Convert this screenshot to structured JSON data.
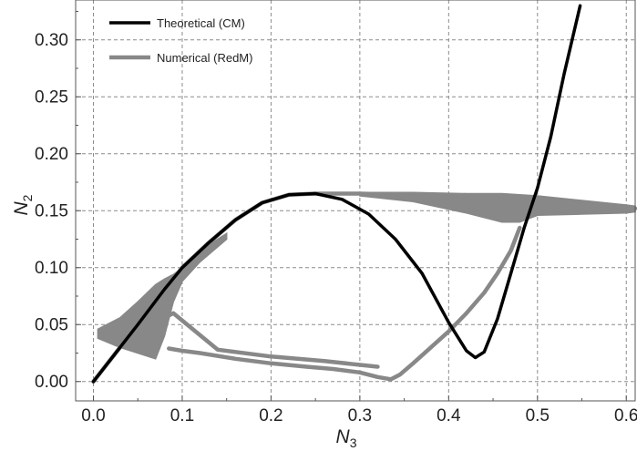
{
  "chart_data": {
    "type": "line",
    "xlabel": "N",
    "xlabel_sub": "3",
    "ylabel": "N",
    "ylabel_sub": "2",
    "xlim": [
      -0.02,
      0.61
    ],
    "ylim": [
      -0.017,
      0.335
    ],
    "xticks": [
      0.0,
      0.1,
      0.2,
      0.3,
      0.4,
      0.5,
      0.6
    ],
    "xtick_labels": [
      "0.0",
      "0.1",
      "0.2",
      "0.3",
      "0.4",
      "0.5",
      "0.6"
    ],
    "yticks": [
      0.0,
      0.05,
      0.1,
      0.15,
      0.2,
      0.25,
      0.3
    ],
    "ytick_labels": [
      "0.00",
      "0.05",
      "0.10",
      "0.15",
      "0.20",
      "0.25",
      "0.30"
    ],
    "grid": true,
    "legend_position": "top-left",
    "series": [
      {
        "name": "Theoretical (CM)",
        "color": "#000000",
        "x": [
          0.0,
          0.02,
          0.05,
          0.08,
          0.1,
          0.13,
          0.16,
          0.19,
          0.22,
          0.25,
          0.28,
          0.31,
          0.34,
          0.37,
          0.4,
          0.42,
          0.43,
          0.44,
          0.455,
          0.47,
          0.485,
          0.5,
          0.515,
          0.53,
          0.548
        ],
        "y": [
          0.0,
          0.02,
          0.05,
          0.081,
          0.1,
          0.122,
          0.142,
          0.157,
          0.164,
          0.165,
          0.16,
          0.147,
          0.125,
          0.095,
          0.052,
          0.027,
          0.021,
          0.026,
          0.055,
          0.095,
          0.135,
          0.17,
          0.215,
          0.27,
          0.33
        ]
      },
      {
        "name": "Numerical (RedM)",
        "color": "#888888",
        "x": [
          0.0,
          0.02,
          0.05,
          0.08,
          0.1,
          0.13,
          0.16,
          0.19,
          0.22,
          0.25,
          0.3,
          0.35,
          0.4,
          0.45,
          0.48,
          0.5,
          0.55,
          0.6,
          0.61
        ],
        "y": [
          0.0,
          0.02,
          0.05,
          0.081,
          0.1,
          0.122,
          0.142,
          0.157,
          0.164,
          0.165,
          0.165,
          0.164,
          0.163,
          0.161,
          0.16,
          0.158,
          0.156,
          0.153,
          0.152
        ]
      },
      {
        "name": "",
        "color": "#888888",
        "x": [
          0.48,
          0.47,
          0.455,
          0.44,
          0.42,
          0.4,
          0.38,
          0.36,
          0.345,
          0.335,
          0.32,
          0.3,
          0.27,
          0.24,
          0.2,
          0.16,
          0.12,
          0.1,
          0.085
        ],
        "y": [
          0.135,
          0.115,
          0.095,
          0.078,
          0.06,
          0.044,
          0.03,
          0.016,
          0.006,
          0.002,
          0.004,
          0.008,
          0.011,
          0.013,
          0.016,
          0.02,
          0.025,
          0.027,
          0.029
        ]
      },
      {
        "name": "",
        "color": "#888888",
        "x": [
          0.04,
          0.07,
          0.09,
          0.14,
          0.2,
          0.26,
          0.32
        ],
        "y": [
          0.04,
          0.052,
          0.06,
          0.028,
          0.022,
          0.018,
          0.013
        ]
      }
    ],
    "bands": [
      {
        "color": "#888888",
        "x": [
          0.005,
          0.03,
          0.05,
          0.07,
          0.08,
          0.09,
          0.1,
          0.12,
          0.15
        ],
        "y_low": [
          0.038,
          0.03,
          0.025,
          0.02,
          0.04,
          0.07,
          0.088,
          0.105,
          0.125
        ],
        "y_high": [
          0.046,
          0.056,
          0.07,
          0.085,
          0.09,
          0.094,
          0.1,
          0.115,
          0.13
        ]
      },
      {
        "color": "#888888",
        "x": [
          0.3,
          0.36,
          0.42,
          0.46,
          0.48,
          0.5,
          0.55,
          0.6,
          0.61
        ],
        "y_low": [
          0.163,
          0.158,
          0.148,
          0.14,
          0.14,
          0.146,
          0.147,
          0.148,
          0.149
        ],
        "y_high": [
          0.166,
          0.166,
          0.165,
          0.165,
          0.164,
          0.163,
          0.159,
          0.155,
          0.154
        ]
      }
    ]
  }
}
